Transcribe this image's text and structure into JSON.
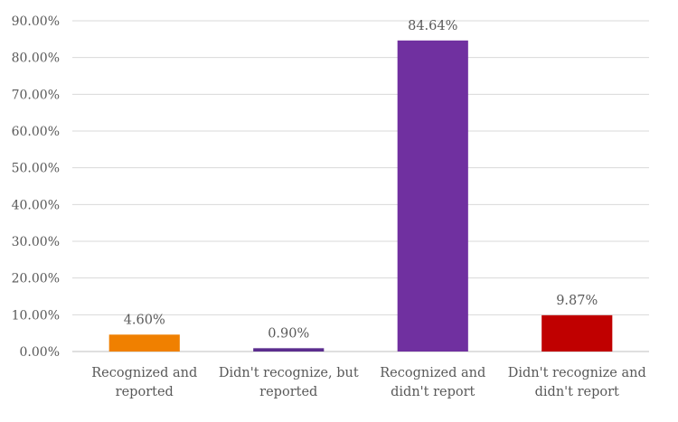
{
  "chart_data": {
    "type": "bar",
    "title": "",
    "xlabel": "",
    "ylabel": "",
    "categories": [
      [
        "Recognized and",
        "reported"
      ],
      [
        "Didn't recognize, but",
        "reported"
      ],
      [
        "Recognized and",
        "didn't report"
      ],
      [
        "Didn't recognize and",
        "didn't report"
      ]
    ],
    "values": [
      4.6,
      0.9,
      84.64,
      9.87
    ],
    "data_labels": [
      "4.60%",
      "0.90%",
      "84.64%",
      "9.87%"
    ],
    "colors": [
      "#f08000",
      "#5b2d8e",
      "#7030a0",
      "#c00000"
    ],
    "ylim": [
      0,
      90
    ],
    "yticks": [
      0,
      10,
      20,
      30,
      40,
      50,
      60,
      70,
      80,
      90
    ],
    "ytick_labels": [
      "0.00%",
      "10.00%",
      "20.00%",
      "30.00%",
      "40.00%",
      "50.00%",
      "60.00%",
      "70.00%",
      "80.00%",
      "90.00%"
    ],
    "grid": true,
    "legend": "none"
  }
}
